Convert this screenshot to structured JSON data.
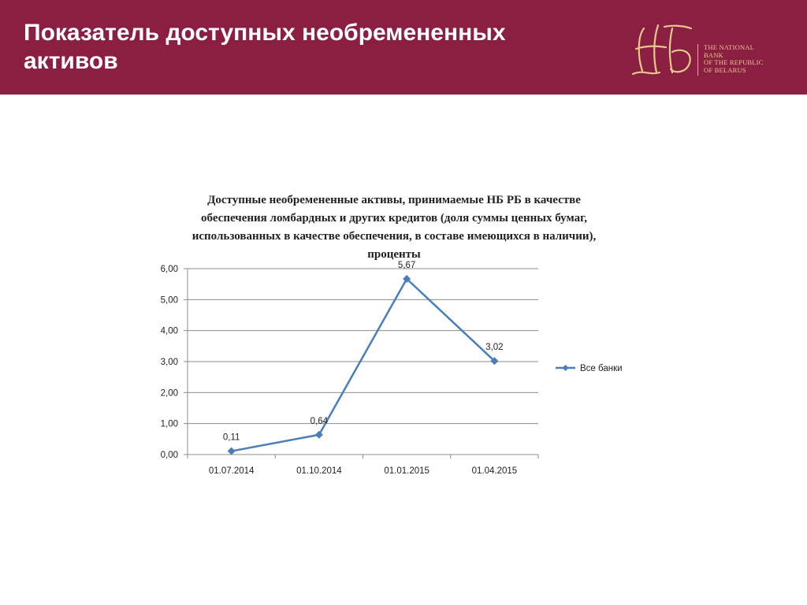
{
  "header": {
    "title": "Показатель доступных необремененных активов",
    "logo_text": [
      "THE NATIONAL",
      "BANK",
      "OF THE REPUBLIC",
      "OF BELARUS"
    ],
    "logo_monogram": "НБ",
    "bg_color": "#8b1f42",
    "logo_color": "#e6c98a"
  },
  "chart_data": {
    "type": "line",
    "title": "Доступные необремененные активы, принимаемые НБ РБ в качестве обеспечения ломбардных и других кредитов (доля суммы ценных бумаг, использованных в качестве обеспечения, в составе имеющихся в наличии), проценты",
    "categories": [
      "01.07.2014",
      "01.10.2014",
      "01.01.2015",
      "01.04.2015"
    ],
    "series": [
      {
        "name": "Все банки",
        "values": [
          0.11,
          0.64,
          5.67,
          3.02
        ],
        "labels": [
          "0,11",
          "0,64",
          "5,67",
          "3,02"
        ],
        "color": "#4a7ebb"
      }
    ],
    "yticks": [
      "0,00",
      "1,00",
      "2,00",
      "3,00",
      "4,00",
      "5,00",
      "6,00"
    ],
    "ylim": [
      0,
      6
    ],
    "grid": true,
    "legend_position": "right"
  }
}
